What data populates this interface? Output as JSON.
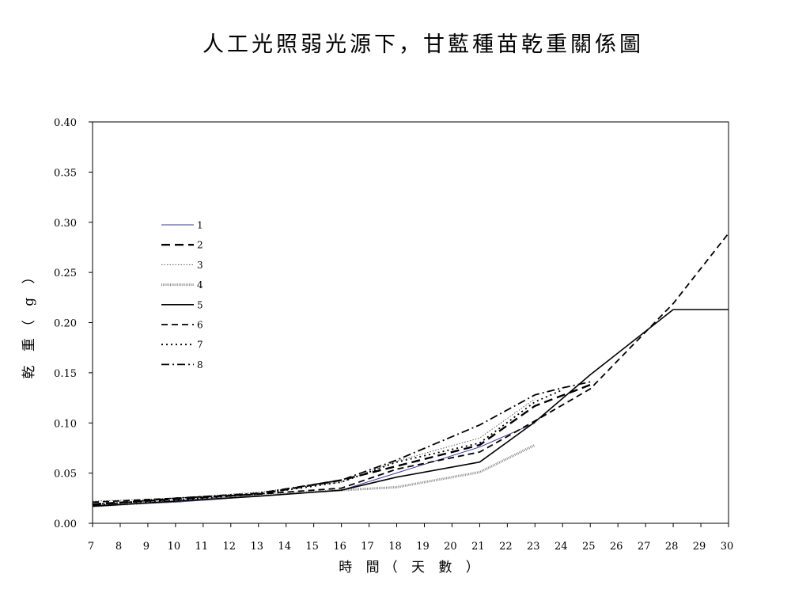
{
  "chart_data": {
    "type": "line",
    "title": "人工光照弱光源下，甘藍種苗乾重關係圖",
    "xlabel": "時 間（ 天 數 ）",
    "ylabel": "乾 重（ g ）",
    "x_ticks": [
      7,
      8,
      9,
      10,
      11,
      12,
      13,
      14,
      15,
      16,
      17,
      18,
      19,
      20,
      21,
      22,
      23,
      24,
      25,
      26,
      27,
      28,
      29,
      30
    ],
    "y_ticks": [
      "0.00",
      "0.05",
      "0.10",
      "0.15",
      "0.20",
      "0.25",
      "0.30",
      "0.35",
      "0.40"
    ],
    "xlim": [
      7,
      30
    ],
    "ylim": [
      0,
      0.4
    ],
    "grid": false,
    "legend_position": "upper-left",
    "series": [
      {
        "name": "1",
        "style": "solid-thin",
        "color": "#3a3aa0",
        "points": [
          [
            7,
            0.018
          ],
          [
            10,
            0.021
          ],
          [
            13,
            0.027
          ],
          [
            16,
            0.033
          ],
          [
            21,
            0.076
          ],
          [
            23,
            0.1
          ]
        ]
      },
      {
        "name": "2",
        "style": "dash-bold",
        "color": "#000000",
        "points": [
          [
            7,
            0.019
          ],
          [
            10,
            0.024
          ],
          [
            13,
            0.029
          ],
          [
            16,
            0.043
          ],
          [
            18,
            0.057
          ],
          [
            21,
            0.078
          ],
          [
            23,
            0.117
          ],
          [
            25,
            0.138
          ]
        ]
      },
      {
        "name": "3",
        "style": "dotted-fine",
        "color": "#555555",
        "points": [
          [
            7,
            0.022
          ],
          [
            10,
            0.025
          ],
          [
            13,
            0.031
          ],
          [
            16,
            0.041
          ],
          [
            18,
            0.062
          ],
          [
            21,
            0.085
          ],
          [
            23,
            0.124
          ]
        ]
      },
      {
        "name": "4",
        "style": "dotted-thick",
        "color": "#888888",
        "points": [
          [
            7,
            0.017
          ],
          [
            10,
            0.022
          ],
          [
            13,
            0.028
          ],
          [
            16,
            0.033
          ],
          [
            18,
            0.036
          ],
          [
            21,
            0.051
          ],
          [
            23,
            0.078
          ]
        ]
      },
      {
        "name": "5",
        "style": "solid",
        "color": "#000000",
        "points": [
          [
            7,
            0.017
          ],
          [
            10,
            0.022
          ],
          [
            13,
            0.027
          ],
          [
            16,
            0.033
          ],
          [
            18,
            0.046
          ],
          [
            21,
            0.061
          ],
          [
            23,
            0.101
          ],
          [
            25,
            0.148
          ],
          [
            28,
            0.213
          ],
          [
            30,
            0.213
          ]
        ]
      },
      {
        "name": "6",
        "style": "dash",
        "color": "#000000",
        "points": [
          [
            7,
            0.021
          ],
          [
            10,
            0.025
          ],
          [
            13,
            0.029
          ],
          [
            16,
            0.035
          ],
          [
            18,
            0.054
          ],
          [
            21,
            0.071
          ],
          [
            23,
            0.102
          ],
          [
            25,
            0.134
          ],
          [
            28,
            0.219
          ],
          [
            30,
            0.289
          ]
        ]
      },
      {
        "name": "7",
        "style": "dot",
        "color": "#000000",
        "points": [
          [
            7,
            0.019
          ],
          [
            10,
            0.023
          ],
          [
            13,
            0.029
          ],
          [
            16,
            0.041
          ],
          [
            18,
            0.061
          ],
          [
            21,
            0.08
          ],
          [
            23,
            0.121
          ],
          [
            24,
            0.133
          ]
        ]
      },
      {
        "name": "8",
        "style": "dash-dot",
        "color": "#000000",
        "points": [
          [
            7,
            0.018
          ],
          [
            10,
            0.025
          ],
          [
            13,
            0.03
          ],
          [
            16,
            0.043
          ],
          [
            18,
            0.063
          ],
          [
            21,
            0.098
          ],
          [
            23,
            0.128
          ],
          [
            24,
            0.135
          ],
          [
            25,
            0.141
          ]
        ]
      }
    ]
  }
}
